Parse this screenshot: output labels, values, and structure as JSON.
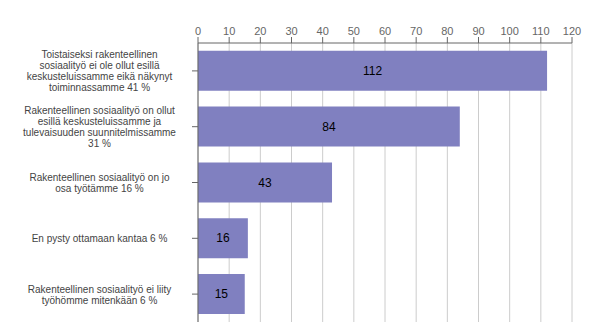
{
  "chart_data": {
    "type": "bar",
    "orientation": "horizontal",
    "categories": [
      "Toistaiseksi rakenteellinen\nsosiaalityö ei ole ollut esillä\nkeskusteluissamme eikä näkynyt\ntoiminnassamme 41 %",
      "Rakenteellinen sosiaalityö on ollut\nesillä keskusteluissamme ja\ntulevaisuuden suunnitelmissamme\n31 %",
      "Rakenteellinen sosiaalityö on jo\nosa työtämme 16 %",
      "En pysty ottamaan kantaa 6 %",
      "Rakenteellinen sosiaalityö ei liity\ntyöhömme mitenkään 6 %"
    ],
    "values": [
      112,
      84,
      43,
      16,
      15
    ],
    "color": "#8080c0",
    "xlim": [
      0,
      120
    ],
    "xticks": [
      0,
      10,
      20,
      30,
      40,
      50,
      60,
      70,
      80,
      90,
      100,
      110,
      120
    ],
    "grid": true,
    "data_labels": true
  }
}
